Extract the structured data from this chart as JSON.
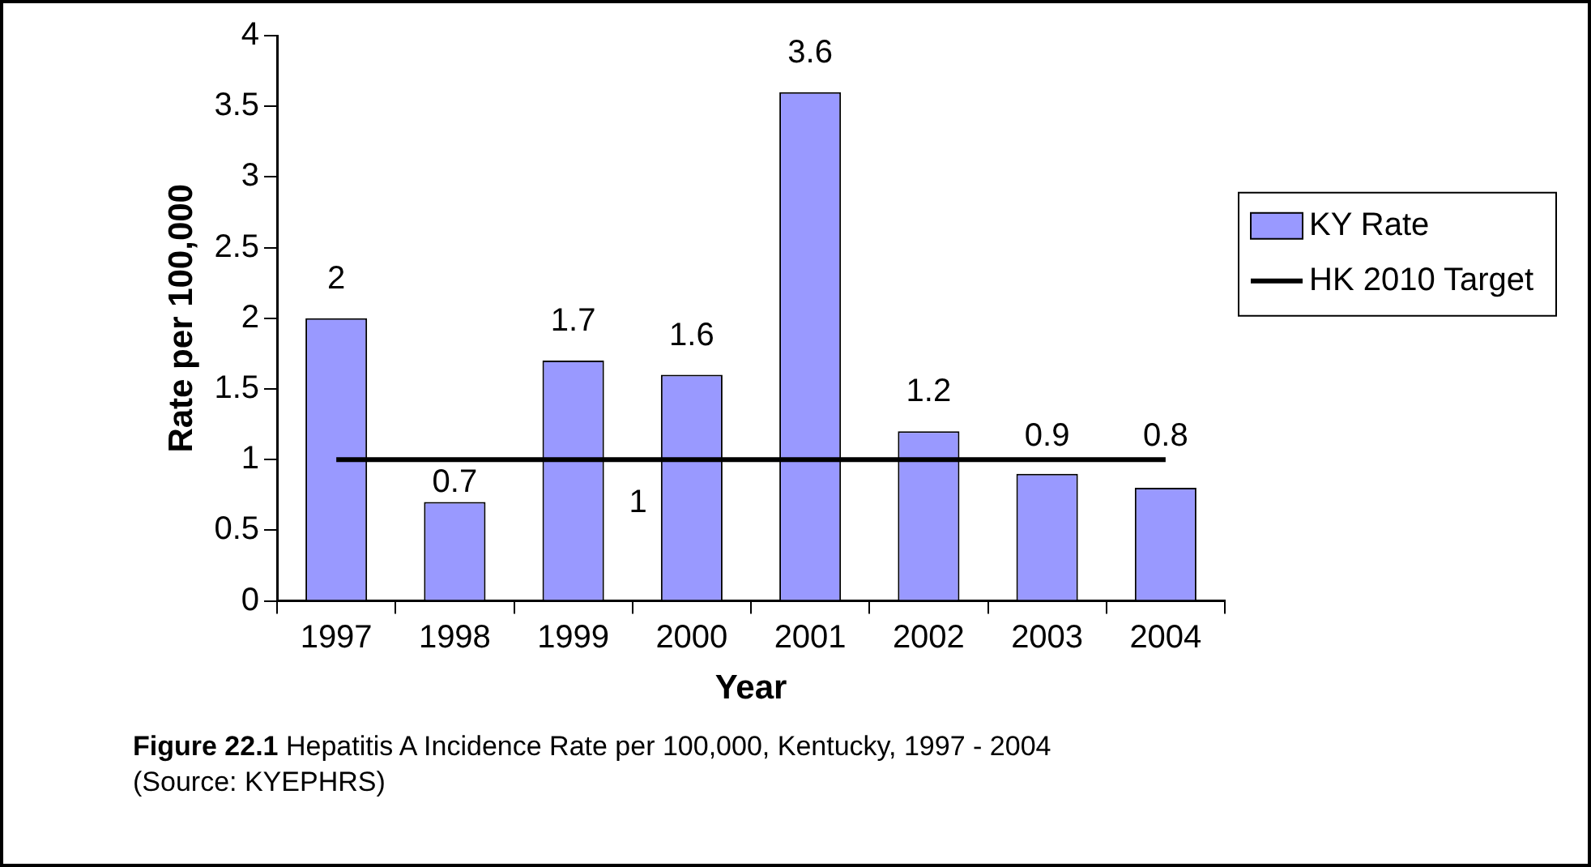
{
  "chart_data": {
    "type": "bar",
    "xlabel": "Year",
    "ylabel": "Rate per 100,000",
    "categories": [
      "1997",
      "1998",
      "1999",
      "2000",
      "2001",
      "2002",
      "2003",
      "2004"
    ],
    "series": [
      {
        "name": "KY Rate",
        "color": "#9999ff",
        "values": [
          2,
          0.7,
          1.7,
          1.6,
          3.6,
          1.2,
          0.9,
          0.8
        ],
        "value_labels": [
          "2",
          "0.7",
          "1.7",
          "1.6",
          "3.6",
          "1.2",
          "0.9",
          "0.8"
        ]
      },
      {
        "name": "HK 2010 Target",
        "type": "line",
        "color": "#000000",
        "values": [
          1,
          1,
          1,
          1,
          1,
          1,
          1,
          1
        ],
        "value_labels": [
          null,
          null,
          "1",
          null,
          null,
          null,
          null,
          null
        ]
      }
    ],
    "ylim": [
      0,
      4
    ],
    "yticks": [
      0,
      0.5,
      1,
      1.5,
      2,
      2.5,
      3,
      3.5,
      4
    ],
    "grid": false,
    "legend": "right",
    "marker": "none",
    "annotations": [
      "Figure 22.1",
      "Hepatitis A Incidence Rate per 100,000, Kentucky, 1997 - 2004",
      "(Source:  KYEPHRS)"
    ]
  }
}
